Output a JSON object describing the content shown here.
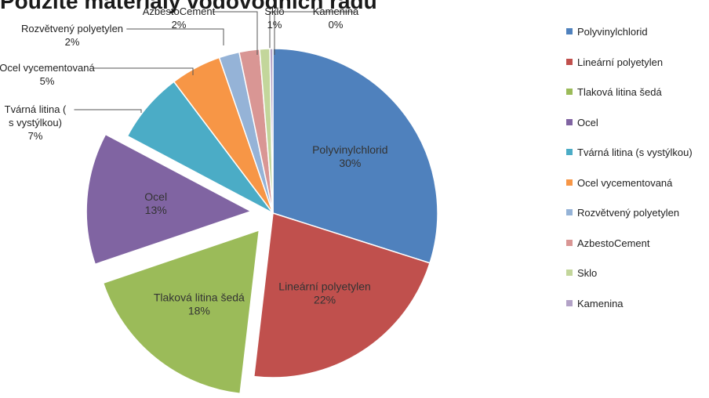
{
  "chart_data": {
    "type": "pie",
    "title": "Použité materiály vodovodních řadů",
    "slices": [
      {
        "name": "Polyvinylchlorid",
        "value": 30,
        "label": "30%",
        "color": "#4f81bd",
        "exploded": false,
        "label_pos": "inside"
      },
      {
        "name": "Lineární polyetylen",
        "value": 22,
        "label": "22%",
        "color": "#c0504d",
        "exploded": false,
        "label_pos": "inside"
      },
      {
        "name": "Tlaková litina šedá",
        "value": 18,
        "label": "18%",
        "color": "#9bbb59",
        "exploded": true,
        "label_pos": "inside"
      },
      {
        "name": "Ocel",
        "value": 13,
        "label": "13%",
        "color": "#8064a2",
        "exploded": true,
        "label_pos": "inside"
      },
      {
        "name": "Tvárná litina (s vystýlkou)",
        "value": 7,
        "label": "7%",
        "color": "#4bacc6",
        "exploded": false,
        "label_pos": "outside"
      },
      {
        "name": "Ocel vycementovaná",
        "value": 5,
        "label": "5%",
        "color": "#f79646",
        "exploded": false,
        "label_pos": "outside"
      },
      {
        "name": "Rozvětvený polyetylen",
        "value": 2,
        "label": "2%",
        "color": "#95b3d7",
        "exploded": false,
        "label_pos": "outside"
      },
      {
        "name": "AzbestoCement",
        "value": 2,
        "label": "2%",
        "color": "#d99694",
        "exploded": false,
        "label_pos": "outside"
      },
      {
        "name": "Sklo",
        "value": 1,
        "label": "1%",
        "color": "#c3d69b",
        "exploded": false,
        "label_pos": "outside"
      },
      {
        "name": "Kamenina",
        "value": 0.3,
        "label": "0%",
        "color": "#b3a2c7",
        "exploded": false,
        "label_pos": "outside"
      }
    ],
    "legend": {
      "placement": "right",
      "entries": [
        "Polyvinylchlorid",
        "Lineární polyetylen",
        "Tlaková litina šedá",
        "Ocel",
        "Tvárná litina (s vystýlkou)",
        "Ocel vycementovaná",
        "Rozvětvený polyetylen",
        "AzbestoCement",
        "Sklo",
        "Kamenina"
      ]
    }
  }
}
